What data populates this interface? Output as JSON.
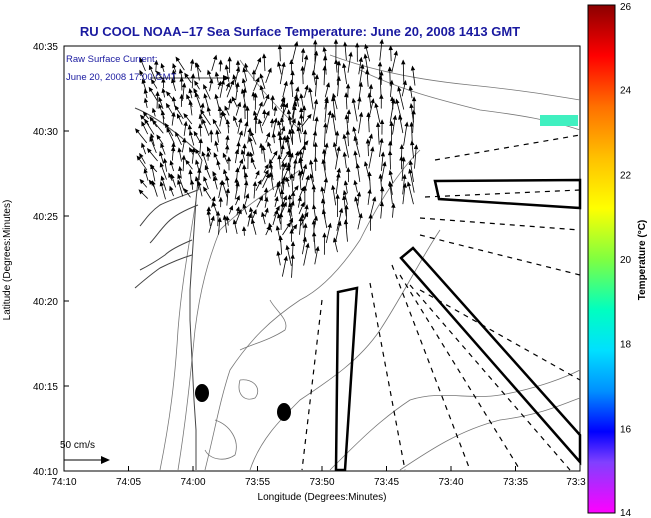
{
  "title": "RU COOL   NOAA–17  Sea Surface Temperature:  June 20, 2008 1413 GMT",
  "current_label": "Raw Surface Current:",
  "current_time": "June 20, 2008 17:00 GMT",
  "scale_label": "50 cm/s",
  "x_axis_label": "Longitude (Degrees:Minutes)",
  "y_axis_label": "Latitude (Degrees:Minutes)",
  "colorbar_label": "Temperature (°C)",
  "x_ticks": [
    "74:10",
    "74:05",
    "74:00",
    "73:55",
    "73:50",
    "73:45",
    "73:40",
    "73:35",
    "73:3"
  ],
  "y_ticks": [
    "40:35",
    "40:30",
    "40:25",
    "40:20",
    "40:15",
    "40:10"
  ],
  "colorbar_ticks": [
    "26",
    "24",
    "22",
    "20",
    "18",
    "16",
    "14"
  ],
  "colors": {
    "title": "#1a1aa0",
    "frame": "#000000",
    "coast": "#555555",
    "arrows": "#000000"
  },
  "colorbar_stops": [
    "#8b0000",
    "#ff0000",
    "#ff8000",
    "#ffff00",
    "#80ff00",
    "#00ff80",
    "#00ffff",
    "#0080ff",
    "#0000ff",
    "#8000ff",
    "#ff00ff"
  ]
}
